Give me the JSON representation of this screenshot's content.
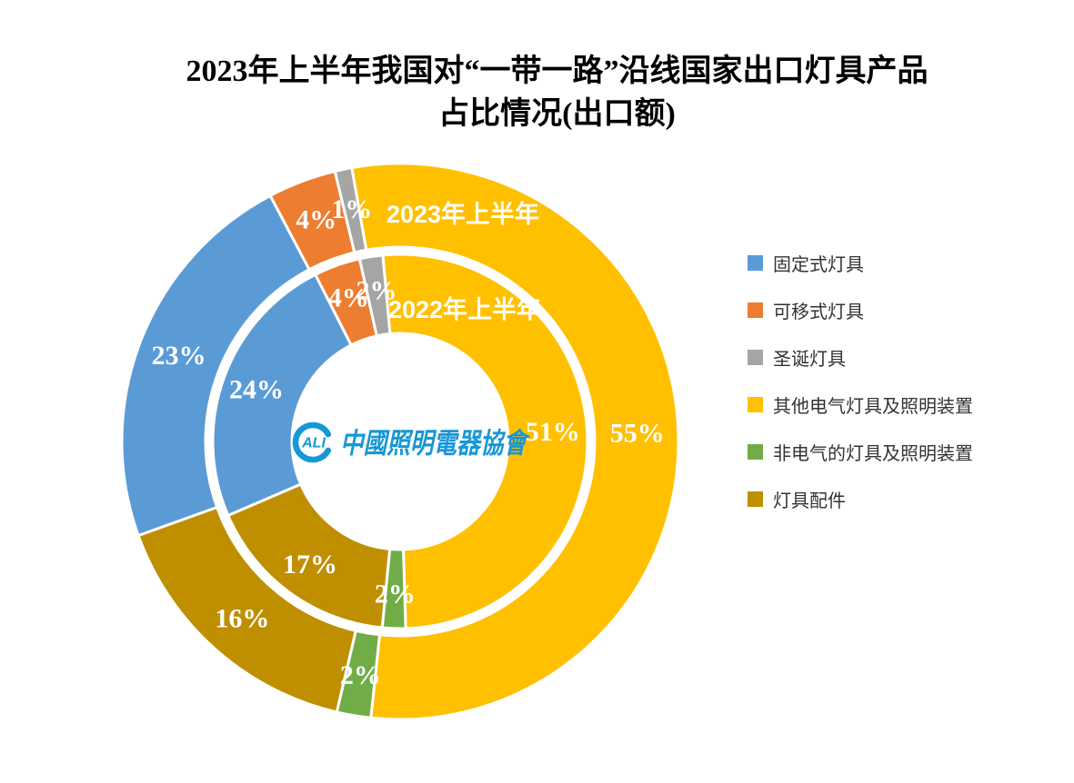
{
  "title": {
    "line1": "2023年上半年我国对“一带一路”沿线国家出口灯具产品",
    "line2": "占比情况(出口额)"
  },
  "chart_data": {
    "type": "pie",
    "subtype": "double_ring_donut",
    "title": "2023年上半年我国对“一带一路”沿线国家出口灯具产品占比情况(出口额)",
    "unit": "%",
    "categories": [
      "固定式灯具",
      "可移式灯具",
      "圣诞灯具",
      "其他电气灯具及照明装置",
      "非电气的灯具及照明装置",
      "灯具配件"
    ],
    "colors": [
      "#5B9BD5",
      "#ED7D31",
      "#A5A5A5",
      "#FFC000",
      "#70AD47",
      "#BF8F00"
    ],
    "series": [
      {
        "name": "2023年上半年",
        "ring": "outer",
        "values": [
          23,
          4,
          1,
          55,
          2,
          16
        ]
      },
      {
        "name": "2022年上半年",
        "ring": "inner",
        "values": [
          24,
          4,
          2,
          51,
          2,
          17
        ]
      }
    ],
    "legend_position": "right",
    "rotation_deg": {
      "outer": 250.2,
      "inner": 246.7
    },
    "data_label_color": "#FFFFFF",
    "ring_name_label_color": "#FFFFFF",
    "separator_color": "#FFFFFF",
    "grid": false
  },
  "center_logo": {
    "mark": "ALI",
    "text": "中國照明電器協會",
    "color": "#1797D5"
  }
}
